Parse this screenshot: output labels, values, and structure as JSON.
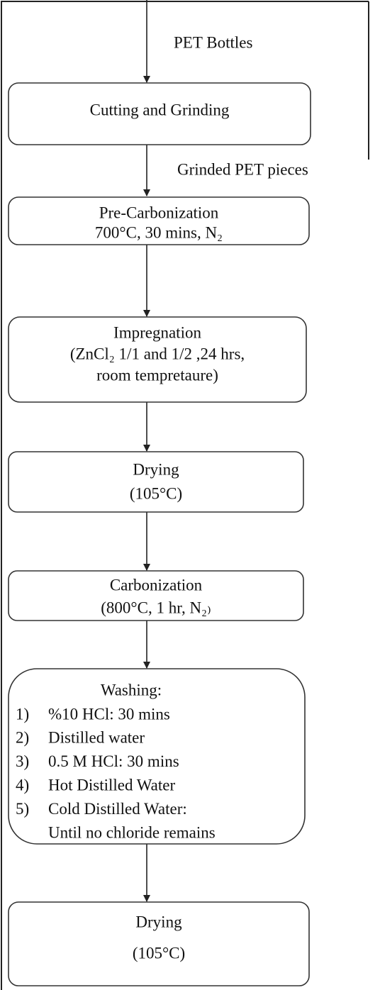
{
  "edge_labels": [
    "PET Bottles",
    "Grinded PET pieces"
  ],
  "nodes": [
    {
      "lines": [
        "Cutting and Grinding"
      ]
    },
    {
      "lines": [
        "Pre-Carbonization",
        "700°C, 30 mins, N₂"
      ]
    },
    {
      "lines": [
        "Impregnation",
        "(ZnCl₂ 1/1 and 1/2 ,24 hrs,",
        "room tempretaure)"
      ]
    },
    {
      "lines": [
        "Drying",
        "(105°C)"
      ]
    },
    {
      "lines": [
        "Carbonization",
        "(800°C, 1 hr, N₂₎"
      ]
    },
    {
      "title": "Washing:",
      "items": [
        {
          "number": "1)",
          "text": "%10 HCl: 30 mins"
        },
        {
          "number": "2)",
          "text": "Distilled water"
        },
        {
          "number": "3)",
          "text": "0.5 M HCl: 30 mins"
        },
        {
          "number": "4)",
          "text": "Hot Distilled Water"
        },
        {
          "number": "5)",
          "text": "Cold Distilled Water:"
        }
      ],
      "continuation": "Until no chloride remains"
    },
    {
      "lines": [
        "Drying",
        "(105°C)"
      ]
    }
  ]
}
